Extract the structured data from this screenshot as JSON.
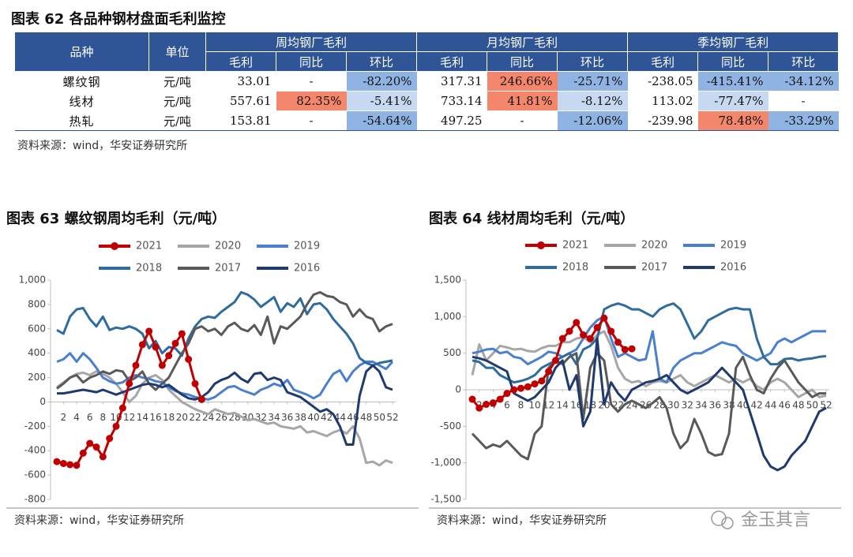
{
  "table": {
    "title": "图表 62  各品种钢材盘面毛利监控",
    "header_rows": [
      [
        "品种",
        "单位",
        "周均钢厂毛利",
        "月均钢厂毛利",
        "季均钢厂毛利"
      ],
      [
        "毛利",
        "同比",
        "环比",
        "毛利",
        "同比",
        "环比",
        "毛利",
        "同比",
        "环比"
      ]
    ],
    "rows": [
      [
        "螺纹钢",
        "元/吨",
        "33.01",
        "-",
        "-82.20%",
        "317.31",
        "246.66%",
        "-25.71%",
        "-238.05",
        "-415.41%",
        "-34.12%"
      ],
      [
        "线材",
        "元/吨",
        "557.61",
        "82.35%",
        "-5.41%",
        "733.14",
        "41.81%",
        "-8.12%",
        "113.02",
        "-77.47%",
        "-"
      ],
      [
        "热轧",
        "元/吨",
        "153.81",
        "-",
        "-54.64%",
        "497.25",
        "-",
        "-12.06%",
        "-239.98",
        "78.48%",
        "-33.29%"
      ]
    ],
    "highlights": [
      {
        "row": 0,
        "col": 4,
        "color": "#8fb4e3"
      },
      {
        "row": 0,
        "col": 6,
        "color": "#f4876b"
      },
      {
        "row": 0,
        "col": 7,
        "color": "#8fb4e3"
      },
      {
        "row": 0,
        "col": 9,
        "color": "#8fb4e3"
      },
      {
        "row": 0,
        "col": 10,
        "color": "#8fb4e3"
      },
      {
        "row": 1,
        "col": 3,
        "color": "#f4876b"
      },
      {
        "row": 1,
        "col": 4,
        "color": "#c6d9f1"
      },
      {
        "row": 1,
        "col": 6,
        "color": "#f4876b"
      },
      {
        "row": 1,
        "col": 7,
        "color": "#c6d9f1"
      },
      {
        "row": 1,
        "col": 9,
        "color": "#c6d9f1"
      },
      {
        "row": 2,
        "col": 4,
        "color": "#8fb4e3"
      },
      {
        "row": 2,
        "col": 7,
        "color": "#8fb4e3"
      },
      {
        "row": 2,
        "col": 9,
        "color": "#f4876b"
      },
      {
        "row": 2,
        "col": 10,
        "color": "#8fb4e3"
      }
    ],
    "source": "资料来源：wind，华安证券研究所"
  },
  "watermark": "金玉其言",
  "chart_data": [
    {
      "type": "line",
      "title": "图表 63  螺纹钢周均毛利（元/吨）",
      "source": "资料来源：wind，华安证券研究所",
      "x": [
        1,
        2,
        3,
        4,
        5,
        6,
        7,
        8,
        9,
        10,
        11,
        12,
        13,
        14,
        15,
        16,
        17,
        18,
        19,
        20,
        21,
        22,
        23,
        24,
        25,
        26,
        27,
        28,
        29,
        30,
        31,
        32,
        33,
        34,
        35,
        36,
        37,
        38,
        39,
        40,
        41,
        42,
        43,
        44,
        45,
        46,
        47,
        48,
        49,
        50,
        51,
        52
      ],
      "xlim": [
        1,
        52
      ],
      "xticks": [
        2,
        4,
        6,
        8,
        10,
        12,
        14,
        16,
        18,
        20,
        22,
        24,
        26,
        28,
        30,
        32,
        34,
        36,
        38,
        40,
        42,
        44,
        46,
        48,
        50,
        52
      ],
      "ylim": [
        -800,
        1000
      ],
      "yticks": [
        -800,
        -600,
        -400,
        -200,
        0,
        200,
        400,
        600,
        800,
        {
          "value": 1000,
          "label": "1,000"
        }
      ],
      "series": [
        {
          "name": "2021",
          "color": "#c00000",
          "marker": true,
          "values": [
            -490,
            -505,
            -515,
            -520,
            -420,
            -340,
            -370,
            -450,
            -300,
            -200,
            -50,
            150,
            300,
            470,
            580,
            450,
            300,
            380,
            480,
            560,
            350,
            150,
            20,
            null,
            null,
            null,
            null,
            null,
            null,
            null,
            null,
            null,
            null,
            null,
            null,
            null,
            null,
            null,
            null,
            null,
            null,
            null,
            null,
            null,
            null,
            null,
            null,
            null,
            null,
            null,
            null,
            null
          ]
        },
        {
          "name": "2020",
          "color": "#a6a6a6",
          "values": [
            120,
            160,
            200,
            230,
            240,
            220,
            250,
            230,
            200,
            150,
            80,
            0,
            50,
            150,
            200,
            220,
            180,
            100,
            50,
            0,
            -30,
            -60,
            -80,
            -100,
            -60,
            -80,
            -100,
            -90,
            -120,
            -150,
            -140,
            -160,
            -180,
            -170,
            -200,
            -210,
            -220,
            -200,
            -250,
            -240,
            -260,
            -280,
            -250,
            -230,
            -260,
            -200,
            -300,
            -500,
            -490,
            -520,
            -480,
            -500
          ]
        },
        {
          "name": "2019",
          "color": "#4a7ed0",
          "values": [
            330,
            350,
            400,
            330,
            400,
            350,
            280,
            200,
            170,
            150,
            160,
            200,
            220,
            200,
            190,
            170,
            160,
            120,
            90,
            70,
            60,
            40,
            30,
            20,
            40,
            80,
            120,
            130,
            100,
            80,
            60,
            100,
            120,
            150,
            130,
            180,
            100,
            80,
            60,
            30,
            60,
            150,
            230,
            260,
            170,
            250,
            300,
            330,
            330,
            300,
            270,
            330
          ]
        },
        {
          "name": "2018",
          "color": "#2e6b9e",
          "values": [
            590,
            560,
            700,
            760,
            770,
            680,
            620,
            700,
            590,
            610,
            600,
            620,
            600,
            560,
            440,
            500,
            400,
            450,
            440,
            380,
            520,
            620,
            680,
            700,
            690,
            740,
            780,
            820,
            900,
            880,
            840,
            780,
            820,
            860,
            740,
            810,
            780,
            850,
            720,
            800,
            810,
            760,
            680,
            620,
            560,
            480,
            360,
            320,
            300,
            320,
            330,
            340
          ]
        },
        {
          "name": "2017",
          "color": "#595959",
          "values": [
            110,
            150,
            200,
            220,
            160,
            200,
            220,
            250,
            230,
            260,
            250,
            170,
            200,
            250,
            150,
            100,
            150,
            200,
            300,
            400,
            480,
            600,
            620,
            580,
            600,
            550,
            620,
            650,
            600,
            580,
            630,
            550,
            700,
            480,
            620,
            600,
            650,
            700,
            800,
            880,
            900,
            870,
            860,
            820,
            800,
            700,
            760,
            700,
            680,
            580,
            620,
            640
          ]
        },
        {
          "name": "2016",
          "color": "#1f3a6e",
          "values": [
            70,
            70,
            80,
            90,
            100,
            90,
            80,
            100,
            80,
            60,
            80,
            100,
            120,
            140,
            150,
            140,
            120,
            140,
            100,
            60,
            30,
            20,
            40,
            80,
            150,
            180,
            200,
            240,
            190,
            160,
            230,
            240,
            180,
            200,
            180,
            80,
            60,
            40,
            0,
            -40,
            -80,
            -60,
            -100,
            -200,
            -350,
            -350,
            50,
            250,
            300,
            250,
            120,
            100
          ]
        }
      ]
    },
    {
      "type": "line",
      "title": "图表 64  线材周均毛利（元/吨）",
      "source": "资料来源：wind，华安证券研究所",
      "x": [
        1,
        2,
        3,
        4,
        5,
        6,
        7,
        8,
        9,
        10,
        11,
        12,
        13,
        14,
        15,
        16,
        17,
        18,
        19,
        20,
        21,
        22,
        23,
        24,
        25,
        26,
        27,
        28,
        29,
        30,
        31,
        32,
        33,
        34,
        35,
        36,
        37,
        38,
        39,
        40,
        41,
        42,
        43,
        44,
        45,
        46,
        47,
        48,
        49,
        50,
        51,
        52
      ],
      "xlim": [
        1,
        52
      ],
      "xticks": [
        2,
        4,
        6,
        8,
        10,
        12,
        14,
        16,
        18,
        20,
        22,
        24,
        26,
        28,
        30,
        32,
        34,
        36,
        38,
        40,
        42,
        44,
        46,
        48,
        50,
        52
      ],
      "ylim": [
        -1500,
        1500
      ],
      "yticks": [
        {
          "value": -1500,
          "label": "-1,500"
        },
        {
          "value": -1000,
          "label": "-1,000"
        },
        -500,
        0,
        500,
        {
          "value": 1000,
          "label": "1,000"
        },
        {
          "value": 1500,
          "label": "1,500"
        }
      ],
      "series": [
        {
          "name": "2021",
          "color": "#c00000",
          "marker": true,
          "values": [
            -130,
            -250,
            -200,
            -180,
            -130,
            -50,
            0,
            20,
            40,
            80,
            120,
            250,
            400,
            700,
            800,
            920,
            750,
            700,
            850,
            980,
            800,
            650,
            550,
            560,
            null,
            null,
            null,
            null,
            null,
            null,
            null,
            null,
            null,
            null,
            null,
            null,
            null,
            null,
            null,
            null,
            null,
            null,
            null,
            null,
            null,
            null,
            null,
            null,
            null,
            null,
            null,
            null
          ]
        },
        {
          "name": "2020",
          "color": "#a6a6a6",
          "values": [
            200,
            620,
            400,
            500,
            600,
            580,
            550,
            560,
            530,
            520,
            570,
            600,
            600,
            650,
            650,
            700,
            720,
            650,
            750,
            800,
            600,
            300,
            150,
            100,
            120,
            50,
            100,
            120,
            100,
            150,
            200,
            100,
            50,
            100,
            150,
            200,
            150,
            100,
            150,
            100,
            150,
            50,
            0,
            100,
            150,
            100,
            0,
            -100,
            -50,
            0,
            -100,
            -80
          ]
        },
        {
          "name": "2019",
          "color": "#4a7ed0",
          "values": [
            500,
            520,
            550,
            560,
            500,
            520,
            450,
            430,
            350,
            400,
            450,
            520,
            500,
            450,
            500,
            550,
            700,
            850,
            950,
            1000,
            700,
            450,
            500,
            450,
            400,
            420,
            800,
            150,
            100,
            300,
            400,
            450,
            500,
            500,
            550,
            600,
            650,
            620,
            600,
            500,
            450,
            400,
            450,
            500,
            650,
            700,
            650,
            700,
            750,
            800,
            800,
            800
          ]
        },
        {
          "name": "2018",
          "color": "#2e6b9e",
          "values": [
            400,
            380,
            300,
            300,
            200,
            150,
            100,
            120,
            150,
            200,
            300,
            350,
            400,
            450,
            500,
            350,
            550,
            600,
            700,
            1100,
            1150,
            1180,
            1150,
            1100,
            1100,
            1050,
            1000,
            1100,
            1150,
            1180,
            1100,
            900,
            700,
            800,
            950,
            1000,
            1050,
            1100,
            1120,
            1100,
            1100,
            700,
            450,
            350,
            350,
            420,
            430,
            400,
            420,
            430,
            450,
            460
          ]
        },
        {
          "name": "2017",
          "color": "#595959",
          "values": [
            -600,
            -700,
            -800,
            -750,
            -780,
            -700,
            -800,
            -900,
            -950,
            -600,
            -500,
            300,
            400,
            350,
            450,
            500,
            -400,
            300,
            500,
            400,
            -200,
            -300,
            -200,
            -150,
            -200,
            -250,
            -180,
            -100,
            -250,
            -600,
            -800,
            -700,
            -400,
            -600,
            -850,
            -900,
            -880,
            -600,
            300,
            450,
            200,
            0,
            -50,
            150,
            300,
            400,
            250,
            100,
            0,
            -100,
            -50,
            -50
          ]
        },
        {
          "name": "2016",
          "color": "#1f3a6e",
          "values": [
            450,
            430,
            400,
            350,
            300,
            250,
            -50,
            -100,
            -150,
            -100,
            0,
            100,
            300,
            400,
            0,
            200,
            -500,
            -300,
            700,
            -200,
            100,
            -50,
            -150,
            0,
            50,
            100,
            120,
            150,
            200,
            100,
            0,
            -50,
            0,
            50,
            100,
            200,
            300,
            200,
            100,
            0,
            -300,
            -600,
            -900,
            -1050,
            -1100,
            -1050,
            -900,
            -800,
            -700,
            -500,
            -300,
            -250
          ]
        }
      ]
    }
  ]
}
